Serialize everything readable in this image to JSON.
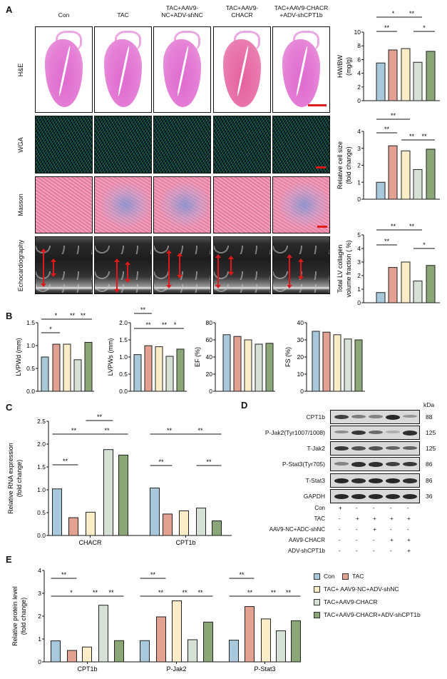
{
  "panel_labels": {
    "a": "A",
    "b": "B",
    "c": "C",
    "d": "D",
    "e": "E"
  },
  "groups": [
    "Con",
    "TAC",
    "TAC+AAV9-\nNC+ADV-shNC",
    "TAC+AAV9-\nCHACR",
    "TAC+AAV9-CHACR\n+ADV-shCPT1b"
  ],
  "colors": [
    "#a8c8dc",
    "#e3a191",
    "#fbedc8",
    "#d5e1d5",
    "#8ba777"
  ],
  "image_rows": [
    "H&E",
    "WGA",
    "Masson",
    "Echocardiography"
  ],
  "chart_data": [
    {
      "id": "hwbw",
      "type": "bar",
      "ylabel": [
        "HW/BW",
        "(mg/g)"
      ],
      "ylim": [
        0,
        10
      ],
      "yticks": [
        0,
        2,
        4,
        6,
        8,
        10
      ],
      "ytick_labels": [
        "0",
        "2",
        "4",
        "6",
        "8",
        "10"
      ],
      "values": [
        5.5,
        7.4,
        7.6,
        5.6,
        7.2
      ],
      "sig": [
        {
          "from": 0,
          "to": 1,
          "label": "**"
        },
        {
          "from": 3,
          "to": 4,
          "label": "*"
        },
        {
          "from": 0,
          "to": 2,
          "label": "*"
        },
        {
          "from": 2,
          "to": 3,
          "label": "**"
        }
      ]
    },
    {
      "id": "cellsize",
      "type": "bar",
      "ylabel": [
        "Relative cell size",
        "(fold change)"
      ],
      "ylim": [
        0,
        4
      ],
      "yticks": [
        0,
        1,
        2,
        3,
        4
      ],
      "ytick_labels": [
        "0",
        "1",
        "2",
        "3",
        "4"
      ],
      "values": [
        1.0,
        3.15,
        2.85,
        1.75,
        2.95
      ],
      "sig": [
        {
          "from": 0,
          "to": 2,
          "label": "**"
        },
        {
          "from": 0,
          "to": 1,
          "label": "**"
        },
        {
          "from": 2,
          "to": 3,
          "label": "**"
        },
        {
          "from": 3,
          "to": 4,
          "label": "**"
        }
      ]
    },
    {
      "id": "collagen",
      "type": "bar",
      "ylabel": [
        "Total LV collagen",
        "volume fraction ( %)"
      ],
      "ylim": [
        0,
        5
      ],
      "yticks": [
        0,
        1,
        2,
        3,
        4,
        5
      ],
      "ytick_labels": [
        "0",
        "1",
        "2",
        "3",
        "4",
        "5"
      ],
      "values": [
        0.75,
        2.6,
        3.0,
        1.6,
        2.75
      ],
      "sig": [
        {
          "from": 0,
          "to": 2,
          "label": "**"
        },
        {
          "from": 2,
          "to": 3,
          "label": "**"
        },
        {
          "from": 0,
          "to": 1,
          "label": "**"
        },
        {
          "from": 3,
          "to": 4,
          "label": "*"
        }
      ]
    },
    {
      "id": "lvpwd",
      "type": "bar",
      "ylabel": [
        "LVPWd (mm)"
      ],
      "ylim": [
        0,
        1.5
      ],
      "yticks": [
        0,
        0.5,
        1,
        1.5
      ],
      "ytick_labels": [
        "0.0",
        "0.5",
        "1.0",
        "1.5"
      ],
      "values": [
        0.75,
        1.03,
        1.03,
        0.69,
        1.07
      ],
      "sig": [
        {
          "from": 0,
          "to": 2,
          "label": "*"
        },
        {
          "from": 2,
          "to": 3,
          "label": "**"
        },
        {
          "from": 3,
          "to": 4,
          "label": "**"
        },
        {
          "from": 0,
          "to": 1,
          "label": "*"
        }
      ]
    },
    {
      "id": "lvpws",
      "type": "bar",
      "ylabel": [
        "LVPWs (mm)"
      ],
      "ylim": [
        0,
        2
      ],
      "yticks": [
        0,
        0.5,
        1,
        1.5,
        2
      ],
      "ytick_labels": [
        "0.0",
        "0.5",
        "1.0",
        "1.5",
        "2.0"
      ],
      "values": [
        1.07,
        1.33,
        1.3,
        1.02,
        1.23
      ],
      "sig": [
        {
          "from": 0,
          "to": 1,
          "label": "**"
        },
        {
          "from": 0,
          "to": 2,
          "label": "**"
        },
        {
          "from": 2,
          "to": 3,
          "label": "**"
        },
        {
          "from": 3,
          "to": 4,
          "label": "*"
        }
      ]
    },
    {
      "id": "ef",
      "type": "bar",
      "ylabel": [
        "EF  (%)"
      ],
      "ylim": [
        0,
        80
      ],
      "yticks": [
        0,
        20,
        40,
        60,
        80
      ],
      "ytick_labels": [
        "0",
        "20",
        "40",
        "60",
        "80"
      ],
      "values": [
        66,
        64,
        60,
        55,
        56
      ],
      "sig": []
    },
    {
      "id": "fs",
      "type": "bar",
      "ylabel": [
        "FS (%)"
      ],
      "ylim": [
        0,
        40
      ],
      "yticks": [
        0,
        10,
        20,
        30,
        40
      ],
      "ytick_labels": [
        "0",
        "10",
        "20",
        "30",
        "40"
      ],
      "values": [
        35,
        34.5,
        33,
        30.5,
        30
      ],
      "sig": []
    },
    {
      "id": "rna",
      "type": "grouped-bar",
      "ylabel": [
        "Relative RNA expression",
        "(fold change)"
      ],
      "ylim": [
        0,
        2.5
      ],
      "yticks": [
        0,
        0.5,
        1,
        1.5,
        2,
        2.5
      ],
      "ytick_labels": [
        "0.0",
        "0.5",
        "1.0",
        "1.5",
        "2.0",
        "2.5"
      ],
      "categories": [
        "CHACR",
        "CPT1b"
      ],
      "values": [
        [
          1.02,
          0.39,
          0.51,
          1.88,
          1.76
        ],
        [
          1.04,
          0.47,
          0.54,
          0.6,
          0.32
        ]
      ],
      "sig": [
        [
          {
            "from": 2,
            "to": 3,
            "label": "**"
          },
          {
            "from": 0,
            "to": 2,
            "label": "**"
          },
          {
            "from": 2,
            "to": 4,
            "label": "**"
          },
          {
            "from": 0,
            "to": 1,
            "label": "**"
          }
        ],
        [
          {
            "from": 0,
            "to": 2,
            "label": "**"
          },
          {
            "from": 2,
            "to": 4,
            "label": "**"
          },
          {
            "from": 0,
            "to": 1,
            "label": "**"
          },
          {
            "from": 3,
            "to": 4,
            "label": "**"
          }
        ]
      ]
    },
    {
      "id": "protein",
      "type": "grouped-bar",
      "ylabel": [
        "Relative protein level",
        "(fold change)"
      ],
      "ylim": [
        0,
        4
      ],
      "yticks": [
        0,
        1,
        2,
        3,
        4
      ],
      "ytick_labels": [
        "0",
        "1",
        "2",
        "3",
        "4"
      ],
      "categories": [
        "CPT1b",
        "P-Jak2",
        "P-Stat3"
      ],
      "values": [
        [
          0.92,
          0.5,
          0.65,
          2.48,
          0.93
        ],
        [
          0.93,
          1.97,
          2.67,
          0.97,
          1.74
        ],
        [
          0.95,
          2.42,
          1.88,
          1.36,
          1.8
        ]
      ],
      "legend": [
        "Con",
        "TAC",
        "TAC+ AAV9-NC+ADV-shNC",
        "TAC+AAV9-CHACR",
        "TAC+AAV9-CHACR+ADV-shCPT1b"
      ],
      "legend_position": "right",
      "sig": [
        [
          {
            "from": 0,
            "to": 1,
            "label": "**"
          },
          {
            "from": 0,
            "to": 2,
            "label": "*"
          },
          {
            "from": 2,
            "to": 3,
            "label": "**"
          },
          {
            "from": 3,
            "to": 4,
            "label": "**"
          }
        ],
        [
          {
            "from": 0,
            "to": 1,
            "label": "**"
          },
          {
            "from": 0,
            "to": 2,
            "label": "**"
          },
          {
            "from": 2,
            "to": 3,
            "label": "**"
          },
          {
            "from": 3,
            "to": 4,
            "label": "**"
          }
        ],
        [
          {
            "from": 0,
            "to": 1,
            "label": "**"
          },
          {
            "from": 0,
            "to": 2,
            "label": "**"
          },
          {
            "from": 2,
            "to": 3,
            "label": "**"
          },
          {
            "from": 3,
            "to": 4,
            "label": "**"
          }
        ]
      ]
    }
  ],
  "blot": {
    "kda_header": "kDa",
    "rows": [
      {
        "label": "CPT1b",
        "kda": "88",
        "intensity": [
          0.8,
          0.45,
          0.4,
          0.95,
          0.3
        ]
      },
      {
        "label": "P-Jak2(Tyr1007/1008)",
        "kda": "125",
        "intensity": [
          0.35,
          0.85,
          0.55,
          0.15,
          0.9
        ]
      },
      {
        "label": "T-Jak2",
        "kda": "125",
        "intensity": [
          0.85,
          0.7,
          0.7,
          0.6,
          0.6
        ]
      },
      {
        "label": "P-Stat3(Tyr705)",
        "kda": "86",
        "intensity": [
          0.4,
          0.9,
          0.9,
          0.8,
          0.85
        ]
      },
      {
        "label": "T-Stat3",
        "kda": "86",
        "intensity": [
          0.95,
          0.9,
          0.95,
          0.95,
          0.9
        ]
      },
      {
        "label": "GAPDH",
        "kda": "36",
        "intensity": [
          0.95,
          0.95,
          0.95,
          0.95,
          0.95
        ]
      }
    ],
    "treatments": [
      {
        "label": "Con",
        "marks": [
          "+",
          "-",
          "-",
          "-",
          "-"
        ]
      },
      {
        "label": "TAC",
        "marks": [
          "-",
          "+",
          "+",
          "+",
          "+"
        ]
      },
      {
        "label": "AAV9-NC+ADC-shNC",
        "marks": [
          "-",
          "-",
          "+",
          "-",
          "-"
        ]
      },
      {
        "label": "AAV9-CHACR",
        "marks": [
          "-",
          "-",
          "-",
          "+",
          "+"
        ]
      },
      {
        "label": "ADV-shCPT1b",
        "marks": [
          "-",
          "-",
          "-",
          "-",
          "+"
        ]
      }
    ]
  }
}
